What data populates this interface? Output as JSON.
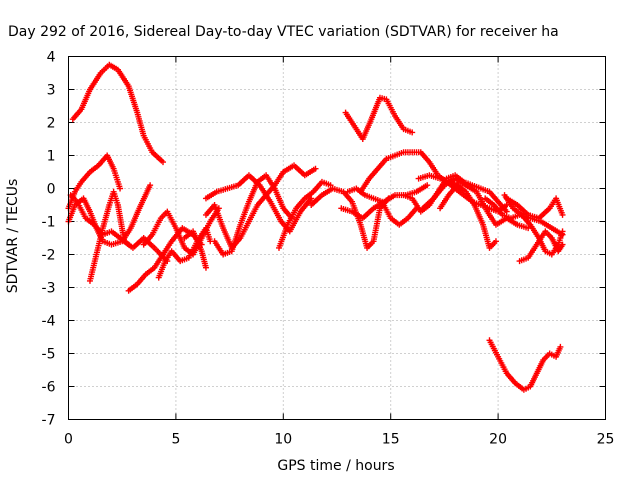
{
  "chart_data": {
    "type": "scatter",
    "title": "Day 292 of 2016, Sidereal Day-to-day VTEC variation (SDTVAR) for receiver ha",
    "xlabel": "GPS time / hours",
    "ylabel": "SDTVAR / TECUs",
    "xlim": [
      0,
      25
    ],
    "ylim": [
      -7,
      4
    ],
    "xticks": [
      "0",
      "5",
      "10",
      "15",
      "20",
      "25"
    ],
    "yticks": [
      "-7",
      "-6",
      "-5",
      "-4",
      "-3",
      "-2",
      "-1",
      "0",
      "1",
      "2",
      "3",
      "4"
    ],
    "grid": true,
    "marker": "+",
    "color": "#ff0000",
    "series": [
      {
        "points": [
          [
            0.2,
            2.1
          ],
          [
            0.6,
            2.4
          ],
          [
            1.0,
            3.0
          ],
          [
            1.5,
            3.5
          ],
          [
            1.9,
            3.75
          ],
          [
            2.3,
            3.6
          ],
          [
            2.8,
            3.1
          ],
          [
            3.2,
            2.3
          ],
          [
            3.5,
            1.6
          ],
          [
            3.9,
            1.1
          ],
          [
            4.4,
            0.8
          ]
        ]
      },
      {
        "points": [
          [
            1.0,
            -2.8
          ],
          [
            1.3,
            -2.0
          ],
          [
            1.6,
            -1.2
          ],
          [
            1.9,
            -0.5
          ],
          [
            2.1,
            -0.1
          ],
          [
            2.3,
            -0.5
          ],
          [
            2.6,
            -1.6
          ],
          [
            3.0,
            -1.8
          ],
          [
            3.5,
            -1.5
          ],
          [
            4.0,
            -1.8
          ],
          [
            4.6,
            -2.2
          ]
        ]
      },
      {
        "points": [
          [
            0.0,
            -1.0
          ],
          [
            0.3,
            -0.5
          ],
          [
            0.7,
            -0.3
          ],
          [
            1.0,
            -0.7
          ],
          [
            1.3,
            -1.2
          ],
          [
            1.6,
            -1.6
          ],
          [
            2.0,
            -1.7
          ],
          [
            2.5,
            -1.6
          ],
          [
            2.9,
            -1.2
          ],
          [
            3.3,
            -0.6
          ],
          [
            3.8,
            0.1
          ]
        ]
      },
      {
        "points": [
          [
            0.0,
            -0.6
          ],
          [
            0.3,
            -0.1
          ],
          [
            0.6,
            0.2
          ],
          [
            1.0,
            0.5
          ],
          [
            1.4,
            0.7
          ],
          [
            1.8,
            1.0
          ],
          [
            2.1,
            0.6
          ],
          [
            2.4,
            0.0
          ]
        ]
      },
      {
        "points": [
          [
            0.1,
            -0.2
          ],
          [
            0.4,
            -0.4
          ],
          [
            0.8,
            -0.9
          ],
          [
            1.2,
            -1.1
          ],
          [
            1.6,
            -1.4
          ],
          [
            2.0,
            -1.3
          ],
          [
            2.4,
            -1.5
          ],
          [
            2.8,
            -1.7
          ]
        ]
      },
      {
        "points": [
          [
            2.8,
            -3.1
          ],
          [
            3.2,
            -2.9
          ],
          [
            3.6,
            -2.6
          ],
          [
            4.0,
            -2.4
          ],
          [
            4.4,
            -2.0
          ],
          [
            4.8,
            -1.6
          ],
          [
            5.3,
            -1.2
          ],
          [
            5.8,
            -1.4
          ],
          [
            6.2,
            -1.7
          ]
        ]
      },
      {
        "points": [
          [
            3.5,
            -1.7
          ],
          [
            3.9,
            -1.4
          ],
          [
            4.3,
            -0.9
          ],
          [
            4.6,
            -0.7
          ],
          [
            5.0,
            -1.2
          ],
          [
            5.4,
            -1.8
          ],
          [
            5.8,
            -2.0
          ],
          [
            6.2,
            -1.5
          ],
          [
            6.6,
            -1.0
          ],
          [
            7.0,
            -0.6
          ]
        ]
      },
      {
        "points": [
          [
            4.2,
            -2.7
          ],
          [
            4.5,
            -2.2
          ],
          [
            4.8,
            -1.9
          ],
          [
            5.2,
            -2.2
          ],
          [
            5.6,
            -2.1
          ],
          [
            6.0,
            -1.6
          ],
          [
            6.4,
            -1.2
          ],
          [
            6.6,
            -1.6
          ]
        ]
      },
      {
        "points": [
          [
            5.4,
            -1.5
          ],
          [
            5.8,
            -1.3
          ],
          [
            6.2,
            -1.9
          ],
          [
            6.4,
            -2.4
          ]
        ]
      },
      {
        "points": [
          [
            6.4,
            -0.8
          ],
          [
            6.8,
            -0.5
          ],
          [
            7.2,
            -1.2
          ],
          [
            7.6,
            -1.8
          ],
          [
            8.0,
            -1.5
          ],
          [
            8.4,
            -1.0
          ],
          [
            8.8,
            -0.5
          ],
          [
            9.2,
            -0.2
          ],
          [
            9.6,
            0.1
          ],
          [
            10.0,
            0.5
          ],
          [
            10.5,
            0.7
          ],
          [
            11.0,
            0.4
          ],
          [
            11.5,
            0.6
          ]
        ]
      },
      {
        "points": [
          [
            6.4,
            -0.3
          ],
          [
            6.9,
            -0.1
          ],
          [
            7.4,
            0.0
          ],
          [
            7.9,
            0.1
          ],
          [
            8.4,
            0.4
          ],
          [
            8.9,
            0.1
          ],
          [
            9.4,
            -0.4
          ],
          [
            9.9,
            -1.0
          ],
          [
            10.3,
            -1.3
          ],
          [
            10.8,
            -0.7
          ],
          [
            11.3,
            -0.3
          ]
        ]
      },
      {
        "points": [
          [
            6.8,
            -1.6
          ],
          [
            7.2,
            -2.0
          ],
          [
            7.6,
            -1.9
          ],
          [
            8.0,
            -1.1
          ],
          [
            8.4,
            -0.4
          ],
          [
            8.8,
            0.2
          ],
          [
            9.2,
            0.4
          ],
          [
            9.6,
            0.0
          ],
          [
            10.0,
            -0.6
          ],
          [
            10.4,
            -0.9
          ]
        ]
      },
      {
        "points": [
          [
            9.8,
            -1.8
          ],
          [
            10.2,
            -1.1
          ],
          [
            10.6,
            -0.6
          ],
          [
            11.0,
            -0.3
          ],
          [
            11.4,
            -0.1
          ],
          [
            11.8,
            0.2
          ],
          [
            12.2,
            0.1
          ]
        ]
      },
      {
        "points": [
          [
            11.3,
            -0.5
          ],
          [
            11.8,
            -0.2
          ],
          [
            12.3,
            0.0
          ],
          [
            12.8,
            -0.1
          ],
          [
            13.2,
            -0.4
          ],
          [
            13.6,
            -1.1
          ],
          [
            13.9,
            -1.8
          ],
          [
            14.2,
            -1.6
          ],
          [
            14.5,
            -0.6
          ],
          [
            14.9,
            -0.3
          ]
        ]
      },
      {
        "points": [
          [
            12.7,
            -0.6
          ],
          [
            13.2,
            -0.7
          ],
          [
            13.7,
            -0.9
          ],
          [
            14.2,
            -0.6
          ],
          [
            14.7,
            -0.4
          ],
          [
            15.2,
            -0.2
          ],
          [
            15.7,
            -0.2
          ],
          [
            16.2,
            -0.1
          ],
          [
            16.7,
            0.1
          ]
        ]
      },
      {
        "points": [
          [
            13.0,
            -0.1
          ],
          [
            13.4,
            0.0
          ],
          [
            13.8,
            -0.2
          ],
          [
            14.2,
            -0.3
          ],
          [
            14.6,
            -0.4
          ],
          [
            15.0,
            -0.9
          ],
          [
            15.4,
            -1.1
          ],
          [
            15.8,
            -0.9
          ],
          [
            16.2,
            -0.6
          ]
        ]
      },
      {
        "points": [
          [
            12.9,
            2.3
          ],
          [
            13.3,
            1.9
          ],
          [
            13.7,
            1.5
          ],
          [
            14.1,
            2.1
          ],
          [
            14.5,
            2.75
          ],
          [
            14.8,
            2.7
          ],
          [
            15.2,
            2.2
          ],
          [
            15.6,
            1.8
          ],
          [
            16.0,
            1.7
          ]
        ]
      },
      {
        "points": [
          [
            13.6,
            -0.1
          ],
          [
            14.0,
            0.3
          ],
          [
            14.4,
            0.6
          ],
          [
            14.8,
            0.9
          ],
          [
            15.2,
            1.0
          ],
          [
            15.6,
            1.1
          ],
          [
            16.0,
            1.1
          ],
          [
            16.4,
            1.1
          ],
          [
            16.8,
            0.8
          ],
          [
            17.2,
            0.4
          ],
          [
            17.6,
            0.2
          ],
          [
            18.0,
            0.0
          ],
          [
            18.4,
            -0.2
          ],
          [
            18.8,
            -0.4
          ],
          [
            19.2,
            -0.5
          ],
          [
            19.6,
            -0.6
          ],
          [
            20.0,
            -0.7
          ],
          [
            20.4,
            -0.5
          ]
        ]
      },
      {
        "points": [
          [
            15.6,
            -0.2
          ],
          [
            16.0,
            -0.3
          ],
          [
            16.4,
            -0.7
          ],
          [
            16.8,
            -0.5
          ],
          [
            17.2,
            -0.1
          ],
          [
            17.6,
            0.3
          ],
          [
            18.0,
            0.4
          ],
          [
            18.4,
            0.2
          ],
          [
            18.8,
            0.1
          ],
          [
            19.2,
            0.0
          ],
          [
            19.6,
            -0.1
          ],
          [
            20.0,
            -0.4
          ],
          [
            20.4,
            -0.7
          ]
        ]
      },
      {
        "points": [
          [
            16.5,
            -0.6
          ],
          [
            17.0,
            -0.3
          ],
          [
            17.5,
            0.1
          ],
          [
            18.0,
            0.3
          ],
          [
            18.5,
            0.1
          ],
          [
            19.0,
            -0.1
          ],
          [
            19.5,
            -0.7
          ],
          [
            19.9,
            -1.1
          ],
          [
            20.4,
            -0.9
          ],
          [
            20.9,
            -1.1
          ],
          [
            21.4,
            -1.2
          ]
        ]
      },
      {
        "points": [
          [
            16.3,
            0.3
          ],
          [
            16.8,
            0.4
          ],
          [
            17.3,
            0.3
          ],
          [
            17.8,
            0.2
          ],
          [
            18.3,
            0.0
          ]
        ]
      },
      {
        "points": [
          [
            17.3,
            -0.6
          ],
          [
            17.7,
            -0.2
          ],
          [
            18.1,
            0.1
          ],
          [
            18.5,
            -0.1
          ],
          [
            18.9,
            -0.5
          ],
          [
            19.3,
            -1.1
          ],
          [
            19.6,
            -1.8
          ],
          [
            19.9,
            -1.6
          ]
        ]
      },
      {
        "points": [
          [
            19.4,
            -0.3
          ],
          [
            19.8,
            -0.5
          ],
          [
            20.2,
            -0.8
          ],
          [
            20.6,
            -0.9
          ],
          [
            21.0,
            -0.8
          ],
          [
            21.5,
            -0.9
          ],
          [
            22.0,
            -1.0
          ],
          [
            22.5,
            -1.2
          ],
          [
            23.0,
            -1.4
          ]
        ]
      },
      {
        "points": [
          [
            20.3,
            -0.2
          ],
          [
            20.7,
            -0.6
          ],
          [
            21.1,
            -0.8
          ],
          [
            21.5,
            -1.1
          ],
          [
            21.9,
            -1.5
          ],
          [
            22.2,
            -1.9
          ],
          [
            22.5,
            -2.0
          ],
          [
            22.8,
            -1.7
          ],
          [
            23.0,
            -1.3
          ]
        ]
      },
      {
        "points": [
          [
            20.4,
            -0.3
          ],
          [
            20.9,
            -0.5
          ],
          [
            21.4,
            -0.8
          ],
          [
            21.9,
            -0.9
          ],
          [
            22.4,
            -0.6
          ],
          [
            22.7,
            -0.3
          ],
          [
            23.0,
            -0.8
          ]
        ]
      },
      {
        "points": [
          [
            21.0,
            -2.2
          ],
          [
            21.4,
            -2.1
          ],
          [
            21.8,
            -1.7
          ],
          [
            22.2,
            -1.3
          ],
          [
            22.5,
            -1.5
          ],
          [
            22.8,
            -1.9
          ],
          [
            23.0,
            -1.7
          ]
        ]
      },
      {
        "points": [
          [
            19.6,
            -4.6
          ],
          [
            20.0,
            -5.1
          ],
          [
            20.4,
            -5.6
          ],
          [
            20.8,
            -5.9
          ],
          [
            21.2,
            -6.1
          ],
          [
            21.5,
            -6.0
          ],
          [
            21.8,
            -5.6
          ],
          [
            22.1,
            -5.2
          ],
          [
            22.4,
            -5.0
          ],
          [
            22.7,
            -5.1
          ],
          [
            22.9,
            -4.8
          ]
        ]
      }
    ]
  }
}
